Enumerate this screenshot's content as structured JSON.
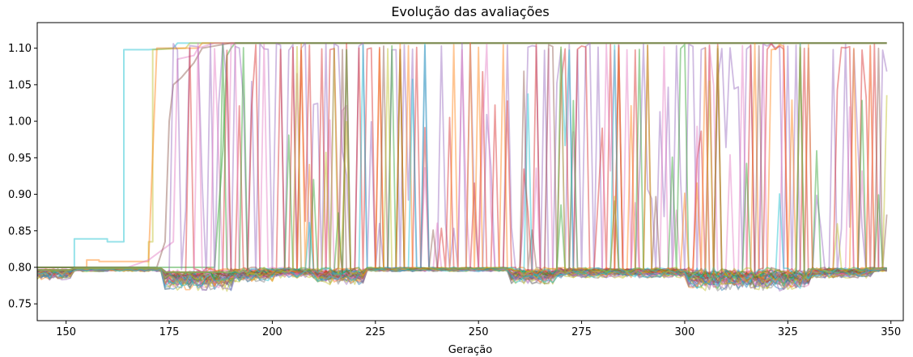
{
  "chart_data": {
    "type": "line",
    "title": "Evolução das avaliações",
    "xlabel": "Geração",
    "ylabel": "",
    "xlim": [
      143,
      353
    ],
    "ylim": [
      0.727,
      1.135
    ],
    "xticks": [
      150,
      175,
      200,
      225,
      250,
      275,
      300,
      325,
      350
    ],
    "yticks": [
      0.75,
      0.8,
      0.85,
      0.9,
      0.95,
      1.0,
      1.05,
      1.1
    ],
    "ytick_labels": [
      "0.75",
      "0.80",
      "0.85",
      "0.90",
      "0.95",
      "1.00",
      "1.05",
      "1.10"
    ],
    "grid": false,
    "legend": "none",
    "x_start": 143,
    "x_end": 349,
    "baseline_level": 0.8,
    "high_level": 1.107,
    "series_colors": [
      "#1f77b4",
      "#ff7f0e",
      "#2ca02c",
      "#d62728",
      "#9467bd",
      "#8c564b",
      "#e377c2",
      "#7f7f7f",
      "#bcbd22",
      "#17becf"
    ],
    "high_series": [
      {
        "color": "#17becf",
        "rise": [
          [
            143,
            0.8
          ],
          [
            152,
            0.8
          ],
          [
            152,
            0.839
          ],
          [
            160,
            0.839
          ],
          [
            160,
            0.835
          ],
          [
            164,
            0.835
          ],
          [
            164,
            1.098
          ],
          [
            170,
            1.098
          ],
          [
            176,
            1.1
          ],
          [
            177,
            1.107
          ],
          [
            349,
            1.107
          ]
        ]
      },
      {
        "color": "#bcbd22",
        "rise": [
          [
            143,
            0.8
          ],
          [
            170,
            0.8
          ],
          [
            170,
            0.835
          ],
          [
            171,
            0.835
          ],
          [
            171,
            1.098
          ],
          [
            179,
            1.1
          ],
          [
            180,
            1.107
          ],
          [
            349,
            1.107
          ]
        ]
      },
      {
        "color": "#ff7f0e",
        "rise": [
          [
            143,
            0.8
          ],
          [
            155,
            0.8
          ],
          [
            155,
            0.81
          ],
          [
            158,
            0.81
          ],
          [
            158,
            0.808
          ],
          [
            165,
            0.808
          ],
          [
            170,
            0.808
          ],
          [
            172,
            1.1
          ],
          [
            182,
            1.1
          ],
          [
            183,
            1.107
          ],
          [
            349,
            1.107
          ]
        ]
      },
      {
        "color": "#e377c2",
        "rise": [
          [
            143,
            0.8
          ],
          [
            165,
            0.8
          ],
          [
            170,
            0.81
          ],
          [
            176,
            0.835
          ],
          [
            177,
            1.085
          ],
          [
            181,
            1.09
          ],
          [
            182,
            1.1
          ],
          [
            186,
            1.107
          ],
          [
            349,
            1.107
          ]
        ]
      },
      {
        "color": "#8c564b",
        "rise": [
          [
            143,
            0.8
          ],
          [
            172,
            0.8
          ],
          [
            174,
            0.835
          ],
          [
            175,
            1.0
          ],
          [
            176,
            1.05
          ],
          [
            178,
            1.06
          ],
          [
            181,
            1.08
          ],
          [
            183,
            1.1
          ],
          [
            190,
            1.107
          ],
          [
            349,
            1.107
          ]
        ]
      },
      {
        "color": "#2ca02c",
        "rise": [
          [
            143,
            0.8
          ],
          [
            186,
            0.8
          ],
          [
            188,
            0.96
          ],
          [
            189,
            1.09
          ],
          [
            190,
            1.1
          ],
          [
            191,
            1.107
          ],
          [
            349,
            1.107
          ]
        ]
      }
    ]
  }
}
